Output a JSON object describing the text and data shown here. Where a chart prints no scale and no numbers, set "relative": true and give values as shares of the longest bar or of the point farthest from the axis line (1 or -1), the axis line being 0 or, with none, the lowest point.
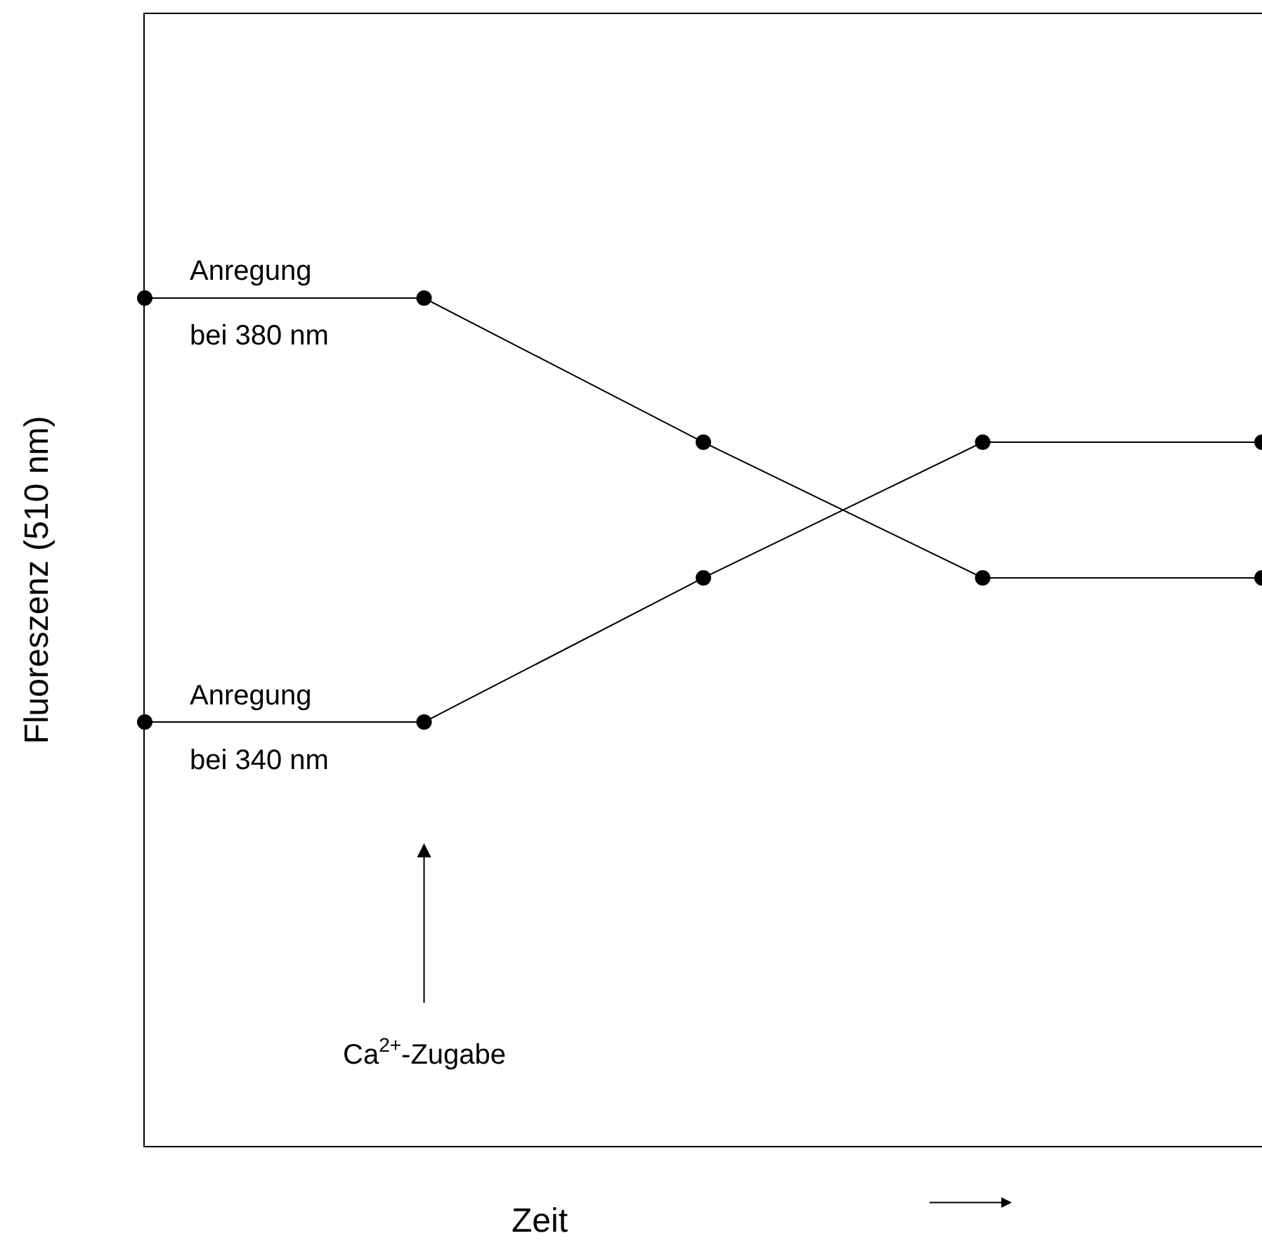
{
  "chart_data": {
    "type": "line",
    "relative": true,
    "xlabel": "Zeit",
    "ylabel": "Fluoreszenz (510 nm)",
    "categories": [
      null,
      null,
      null,
      null,
      null
    ],
    "series": [
      {
        "name": "Anregung\nbei 380 nm",
        "color": "#000000",
        "values": [
          1.0,
          1.0,
          0.83,
          0.67,
          0.67
        ]
      },
      {
        "name": "Anregung\nbei 340 nm",
        "color": "#000000",
        "values": [
          0.5,
          0.5,
          0.67,
          0.83,
          0.83
        ]
      }
    ],
    "annotations": [
      "Ca$^{2+}$-Zugabe"
    ],
    "marker": "circle",
    "line_style": "solid",
    "legend": false
  }
}
